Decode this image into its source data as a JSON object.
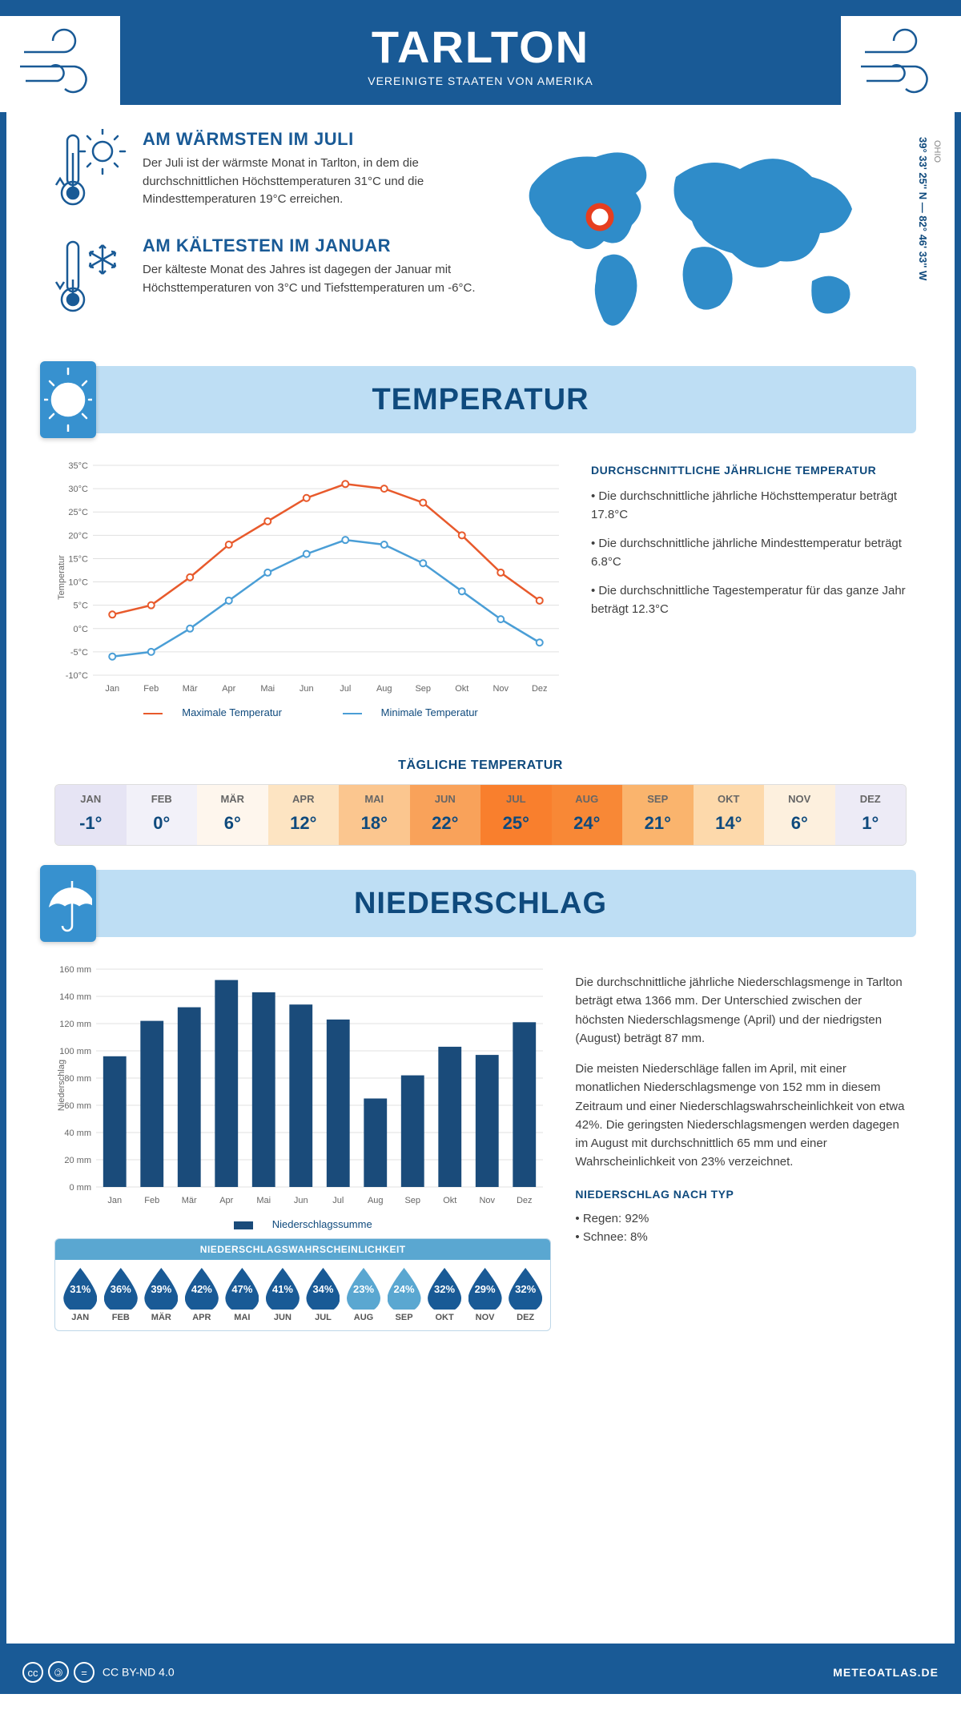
{
  "header": {
    "title": "TARLTON",
    "subtitle": "VEREINIGTE STAATEN VON AMERIKA"
  },
  "location": {
    "coords": "39° 33' 25'' N — 82° 46' 33'' W",
    "region": "OHIO"
  },
  "facts": {
    "warm": {
      "title": "AM WÄRMSTEN IM JULI",
      "text": "Der Juli ist der wärmste Monat in Tarlton, in dem die durchschnittlichen Höchsttemperaturen 31°C und die Mindesttemperaturen 19°C erreichen."
    },
    "cold": {
      "title": "AM KÄLTESTEN IM JANUAR",
      "text": "Der kälteste Monat des Jahres ist dagegen der Januar mit Höchsttemperaturen von 3°C und Tiefsttemperaturen um -6°C."
    }
  },
  "sections": {
    "temperature": "TEMPERATUR",
    "precipitation": "NIEDERSCHLAG"
  },
  "months": [
    "Jan",
    "Feb",
    "Mär",
    "Apr",
    "Mai",
    "Jun",
    "Jul",
    "Aug",
    "Sep",
    "Okt",
    "Nov",
    "Dez"
  ],
  "months_upper": [
    "JAN",
    "FEB",
    "MÄR",
    "APR",
    "MAI",
    "JUN",
    "JUL",
    "AUG",
    "SEP",
    "OKT",
    "NOV",
    "DEZ"
  ],
  "temperature_chart": {
    "type": "line",
    "ylabel": "Temperatur",
    "ylim": [
      -10,
      35
    ],
    "ytick_step": 5,
    "ytick_suffix": "°C",
    "grid_color": "#e0e0e0",
    "series": {
      "max": {
        "label": "Maximale Temperatur",
        "color": "#e85a2c",
        "values": [
          3,
          5,
          11,
          18,
          23,
          28,
          31,
          30,
          27,
          20,
          12,
          6
        ]
      },
      "min": {
        "label": "Minimale Temperatur",
        "color": "#4a9ed6",
        "values": [
          -6,
          -5,
          0,
          6,
          12,
          16,
          19,
          18,
          14,
          8,
          2,
          -3
        ]
      }
    }
  },
  "temperature_info": {
    "heading": "DURCHSCHNITTLICHE JÄHRLICHE TEMPERATUR",
    "bullets": [
      "• Die durchschnittliche jährliche Höchsttemperatur beträgt 17.8°C",
      "• Die durchschnittliche jährliche Mindesttemperatur beträgt 6.8°C",
      "• Die durchschnittliche Tagestemperatur für das ganze Jahr beträgt 12.3°C"
    ]
  },
  "daily_temperature": {
    "title": "TÄGLICHE TEMPERATUR",
    "values": [
      "-1°",
      "0°",
      "6°",
      "12°",
      "18°",
      "22°",
      "25°",
      "24°",
      "21°",
      "14°",
      "6°",
      "1°"
    ],
    "cell_colors": [
      "#e6e4f4",
      "#f2f1f9",
      "#fef6ed",
      "#fde4c2",
      "#fbc68f",
      "#f9a25a",
      "#f97f2d",
      "#f88836",
      "#fab46d",
      "#fdd9ab",
      "#fdf0de",
      "#edebf6"
    ]
  },
  "precip_chart": {
    "type": "bar",
    "ylabel": "Niederschlag",
    "ylim": [
      0,
      160
    ],
    "ytick_step": 20,
    "ytick_suffix": " mm",
    "bar_color": "#1a4b7a",
    "grid_color": "#e0e0e0",
    "series_label": "Niederschlagssumme",
    "values": [
      96,
      122,
      132,
      152,
      143,
      134,
      123,
      65,
      82,
      103,
      97,
      121
    ]
  },
  "precip_text": {
    "p1": "Die durchschnittliche jährliche Niederschlagsmenge in Tarlton beträgt etwa 1366 mm. Der Unterschied zwischen der höchsten Niederschlagsmenge (April) und der niedrigsten (August) beträgt 87 mm.",
    "p2": "Die meisten Niederschläge fallen im April, mit einer monatlichen Niederschlagsmenge von 152 mm in diesem Zeitraum und einer Niederschlagswahrscheinlichkeit von etwa 42%. Die geringsten Niederschlagsmengen werden dagegen im August mit durchschnittlich 65 mm und einer Wahrscheinlichkeit von 23% verzeichnet.",
    "type_heading": "NIEDERSCHLAG NACH TYP",
    "type_bullets": [
      "• Regen: 92%",
      "• Schnee: 8%"
    ]
  },
  "precip_probability": {
    "title": "NIEDERSCHLAGSWAHRSCHEINLICHKEIT",
    "values": [
      "31%",
      "36%",
      "39%",
      "42%",
      "47%",
      "41%",
      "34%",
      "23%",
      "24%",
      "32%",
      "29%",
      "32%"
    ],
    "colors": [
      "#195a96",
      "#195a96",
      "#195a96",
      "#195a96",
      "#195a96",
      "#195a96",
      "#195a96",
      "#5aa7d1",
      "#5aa7d1",
      "#195a96",
      "#195a96",
      "#195a96"
    ]
  },
  "footer": {
    "license": "CC BY-ND 4.0",
    "brand": "METEOATLAS.DE"
  }
}
